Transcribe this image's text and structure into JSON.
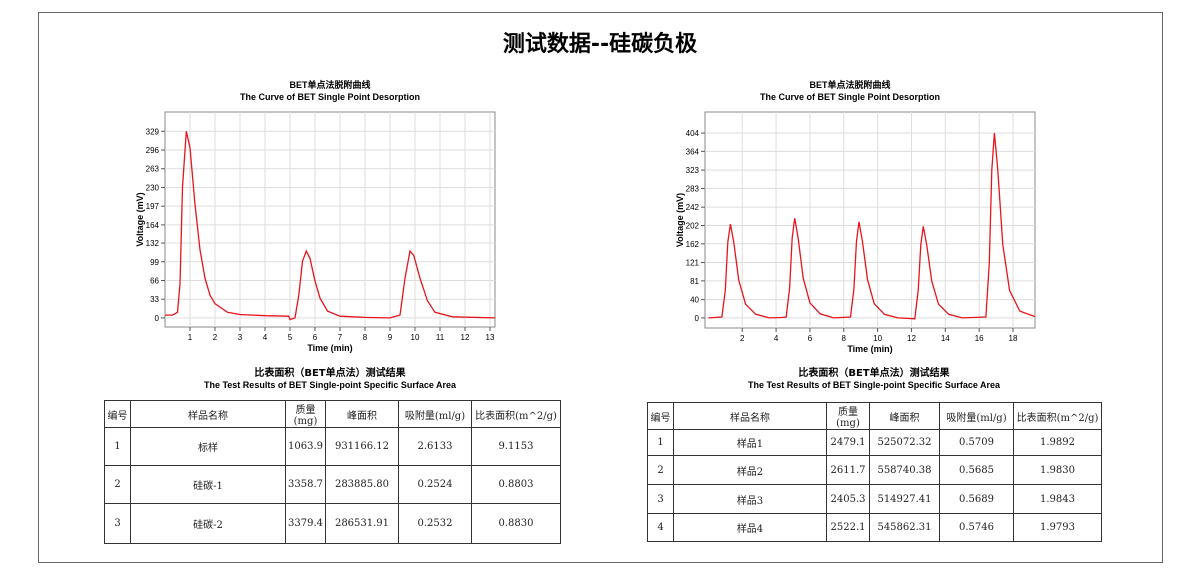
{
  "title": "测试数据--硅碳负极",
  "chart_data": [
    {
      "type": "line",
      "title": "BET单点法脱附曲线",
      "subtitle": "The Curve of BET Single Point Desorption",
      "x_label": "Time (min)",
      "y_label": "Voltage (mV)",
      "color": "#e8141c",
      "grid": true,
      "xlim": [
        0,
        13.2
      ],
      "ylim": [
        -16,
        363
      ],
      "xticks": [
        1,
        2,
        3,
        4,
        5,
        6,
        7,
        8,
        9,
        10,
        11,
        12,
        13
      ],
      "yticks": [
        0,
        33,
        66,
        99,
        132,
        164,
        197,
        230,
        263,
        296,
        329
      ],
      "x": [
        0,
        0.3,
        0.5,
        0.6,
        0.7,
        0.85,
        1.0,
        1.2,
        1.4,
        1.6,
        1.8,
        2.0,
        2.5,
        3,
        4,
        4.95,
        5.0,
        5.2,
        5.35,
        5.5,
        5.65,
        5.8,
        6.0,
        6.2,
        6.5,
        7,
        8,
        9,
        9.4,
        9.6,
        9.8,
        9.95,
        10.2,
        10.5,
        10.8,
        11.5,
        13.2
      ],
      "values": [
        5,
        5,
        10,
        60,
        230,
        329,
        300,
        200,
        120,
        70,
        40,
        25,
        10,
        6,
        4,
        3,
        -3,
        0,
        40,
        100,
        118,
        105,
        65,
        35,
        12,
        3,
        1,
        0,
        5,
        70,
        118,
        110,
        70,
        30,
        10,
        2,
        0
      ]
    },
    {
      "type": "line",
      "title": "BET单点法脱附曲线",
      "subtitle": "The Curve of BET Single Point Desorption",
      "x_label": "Time (min)",
      "y_label": "Voltage (mV)",
      "color": "#e8141c",
      "grid": true,
      "xlim": [
        -0.2,
        19.3
      ],
      "ylim": [
        -22,
        450
      ],
      "xticks": [
        2,
        4,
        6,
        8,
        10,
        12,
        14,
        16,
        18
      ],
      "yticks": [
        0,
        40,
        81,
        121,
        162,
        202,
        242,
        283,
        323,
        364,
        404
      ],
      "x": [
        0,
        0.8,
        1.0,
        1.15,
        1.3,
        1.5,
        1.8,
        2.2,
        2.8,
        3.6,
        4.3,
        4.6,
        4.8,
        4.95,
        5.1,
        5.3,
        5.6,
        6.0,
        6.6,
        7.4,
        8.4,
        8.6,
        8.75,
        8.9,
        9.1,
        9.4,
        9.8,
        10.4,
        11.2,
        12.2,
        12.4,
        12.55,
        12.7,
        12.9,
        13.2,
        13.6,
        14.2,
        15.0,
        16.4,
        16.6,
        16.75,
        16.9,
        17.1,
        17.4,
        17.8,
        18.4,
        19.3
      ],
      "values": [
        0,
        2,
        60,
        165,
        205,
        165,
        82,
        30,
        8,
        0,
        1,
        2,
        65,
        175,
        218,
        175,
        87,
        33,
        9,
        0,
        2,
        63,
        168,
        210,
        168,
        84,
        31,
        8,
        0,
        -2,
        60,
        160,
        200,
        160,
        80,
        30,
        8,
        0,
        2,
        120,
        323,
        404,
        323,
        160,
        60,
        15,
        3
      ]
    }
  ],
  "tables": [
    {
      "title": "比表面积（BET单点法）测试结果",
      "subtitle": "The Test Results of BET Single-point Specific Surface Area",
      "header": [
        "编号",
        "样品名称",
        "质量(mg)",
        "峰面积",
        "吸附量(ml/g)",
        "比表面积(m^2/g)"
      ],
      "rows": [
        [
          "1",
          "标样",
          "1063.9",
          "931166.12",
          "2.6133",
          "9.1153"
        ],
        [
          "2",
          "硅碳-1",
          "3358.7",
          "283885.80",
          "0.2524",
          "0.8803"
        ],
        [
          "3",
          "硅碳-2",
          "3379.4",
          "286531.91",
          "0.2532",
          "0.8830"
        ]
      ]
    },
    {
      "title": "比表面积（BET单点法）测试结果",
      "subtitle": "The Test Results of BET Single-point Specific Surface Area",
      "header": [
        "编号",
        "样品名称",
        "质量(mg)",
        "峰面积",
        "吸附量(ml/g)",
        "比表面积(m^2/g)"
      ],
      "rows": [
        [
          "1",
          "样品1",
          "2479.1",
          "525072.32",
          "0.5709",
          "1.9892"
        ],
        [
          "2",
          "样品2",
          "2611.7",
          "558740.38",
          "0.5685",
          "1.9830"
        ],
        [
          "3",
          "样品3",
          "2405.3",
          "514927.41",
          "0.5689",
          "1.9843"
        ],
        [
          "4",
          "样品4",
          "2522.1",
          "545862.31",
          "0.5746",
          "1.9793"
        ]
      ]
    }
  ]
}
